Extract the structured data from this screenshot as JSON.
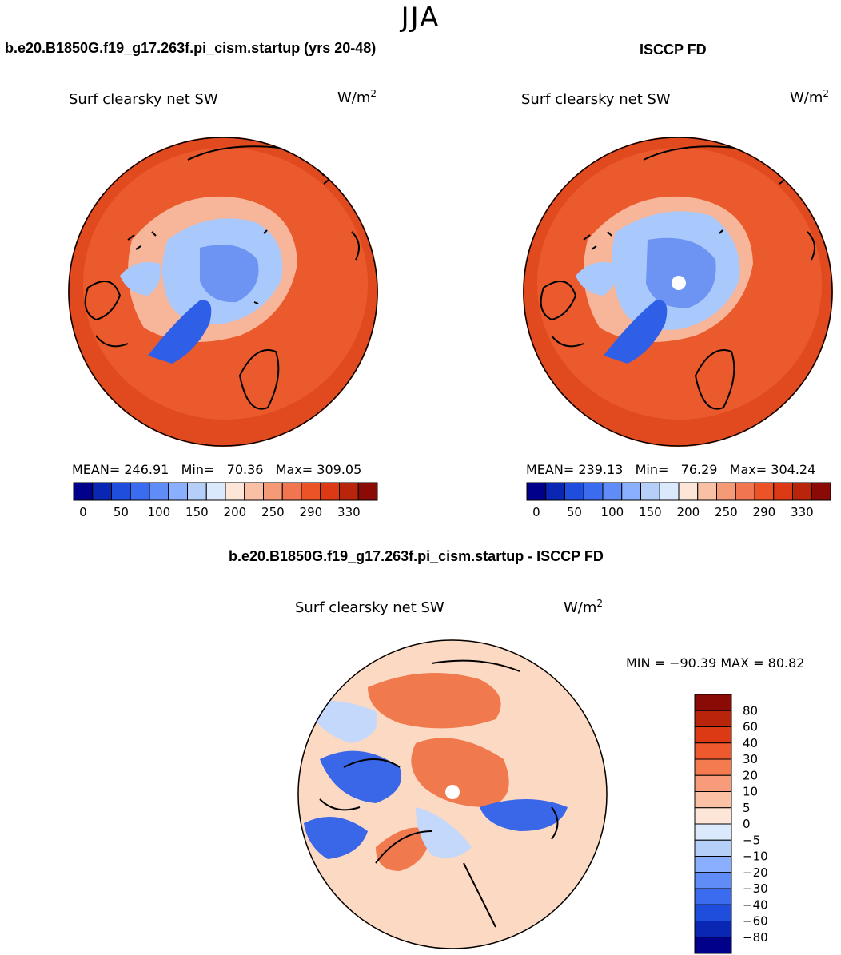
{
  "figure": {
    "season": "JJA",
    "left_title": "b.e20.B1850G.f19_g17.263f.pi_cism.startup (yrs 20-48)",
    "right_title": "ISCCP FD",
    "diff_title": "b.e20.B1850G.f19_g17.263f.pi_cism.startup - ISCCP FD"
  },
  "panels": [
    {
      "id": "model",
      "variable": "Surf clearsky net SW",
      "units": "W/m",
      "units_exp": "2",
      "mean_label": "MEAN=",
      "mean": "246.91",
      "min_label": "Min=",
      "min": "70.36",
      "max_label": "Max=",
      "max": "309.05"
    },
    {
      "id": "obs",
      "variable": "Surf clearsky net SW",
      "units": "W/m",
      "units_exp": "2",
      "mean_label": "MEAN=",
      "mean": "239.13",
      "min_label": "Min=",
      "min": "76.29",
      "max_label": "Max=",
      "max": "304.24"
    },
    {
      "id": "diff",
      "variable": "Surf clearsky net SW",
      "units": "W/m",
      "units_exp": "2",
      "minmax_text": "MIN = −90.39 MAX =  80.82"
    }
  ],
  "colorbars": {
    "absolute": {
      "orientation": "horizontal",
      "colors": [
        "#00008b",
        "#0a27b4",
        "#1e4edb",
        "#3b6cf0",
        "#5f8cf7",
        "#8bafff",
        "#b5cff9",
        "#dae9fb",
        "#fde5d7",
        "#f9c0a6",
        "#f59a77",
        "#f17550",
        "#ec5428",
        "#dc3a15",
        "#b8250a",
        "#8a0a06"
      ],
      "tick_labels": [
        "0",
        "50",
        "100",
        "150",
        "200",
        "250",
        "290",
        "330"
      ]
    },
    "difference": {
      "orientation": "vertical",
      "colors": [
        "#8a0a06",
        "#b8250a",
        "#dc3a15",
        "#ee5a2e",
        "#f47a50",
        "#f79b7b",
        "#fbc1a5",
        "#fde5d7",
        "#dae9fb",
        "#b5cff9",
        "#8bafff",
        "#5f8cf7",
        "#3b6cf0",
        "#1e4edb",
        "#0a27b4",
        "#00008b"
      ],
      "tick_labels": [
        "80",
        "60",
        "40",
        "30",
        "20",
        "10",
        "5",
        "0",
        "−5",
        "−10",
        "−20",
        "−30",
        "−40",
        "−60",
        "−80"
      ]
    }
  },
  "colors": {
    "warm_background": "#ea5a2c",
    "warm_outer": "#e14a1f",
    "arctic_ice": "#a9c8fb",
    "arctic_core": "#6d94f2",
    "greenland": "#2f5fe6",
    "diff_background": "#fbd9c3",
    "diff_red": "#f07a4e",
    "diff_blue": "#3a66e8",
    "missing": "#ffffff",
    "coast": "#000000"
  },
  "chart_data": [
    {
      "type": "heatmap",
      "projection": "north-polar-stereographic",
      "title": "b.e20.B1850G.f19_g17.263f.pi_cism.startup (yrs 20-48)",
      "variable": "Surf clearsky net SW",
      "units": "W/m2",
      "mean": 246.91,
      "min": 70.36,
      "max": 309.05,
      "contour_levels": [
        0,
        25,
        50,
        75,
        100,
        125,
        150,
        175,
        200,
        225,
        250,
        270,
        290,
        310,
        330
      ],
      "colorbar_ticks": [
        0,
        50,
        100,
        150,
        200,
        250,
        290,
        330
      ]
    },
    {
      "type": "heatmap",
      "projection": "north-polar-stereographic",
      "title": "ISCCP FD",
      "variable": "Surf clearsky net SW",
      "units": "W/m2",
      "mean": 239.13,
      "min": 76.29,
      "max": 304.24,
      "contour_levels": [
        0,
        25,
        50,
        75,
        100,
        125,
        150,
        175,
        200,
        225,
        250,
        270,
        290,
        310,
        330
      ],
      "colorbar_ticks": [
        0,
        50,
        100,
        150,
        200,
        250,
        290,
        330
      ]
    },
    {
      "type": "heatmap",
      "projection": "north-polar-stereographic",
      "title": "b.e20.B1850G.f19_g17.263f.pi_cism.startup - ISCCP FD",
      "variable": "Surf clearsky net SW",
      "units": "W/m2",
      "min": -90.39,
      "max": 80.82,
      "contour_levels": [
        -80,
        -60,
        -40,
        -30,
        -20,
        -10,
        -5,
        0,
        5,
        10,
        20,
        30,
        40,
        60,
        80
      ]
    }
  ]
}
